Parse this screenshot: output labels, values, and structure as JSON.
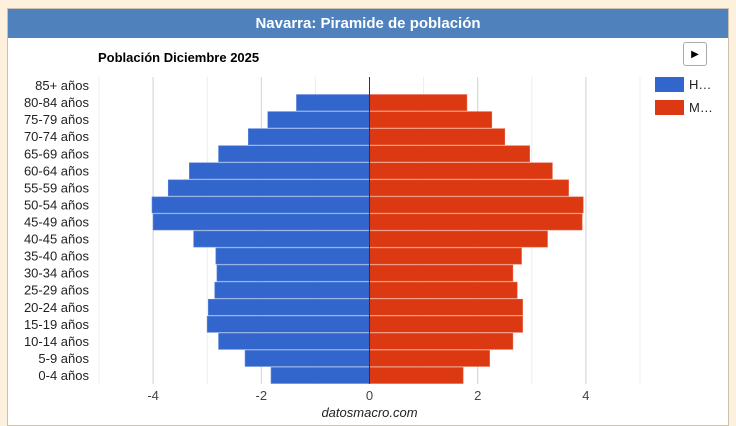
{
  "header": {
    "title": "Navarra: Piramide de población"
  },
  "controls": {
    "play_icon": "▶"
  },
  "footer": {
    "source": "datosmacro.com"
  },
  "colors": {
    "men": "#3366cc",
    "women": "#dc3912",
    "header": "#4f81bd"
  },
  "chart_data": {
    "type": "bar",
    "orientation": "horizontal-pyramid",
    "title": "Población Diciembre 2025",
    "categories": [
      "85+ años",
      "80-84 años",
      "75-79 años",
      "70-74 años",
      "65-69 años",
      "60-64 años",
      "55-59 años",
      "50-54 años",
      "45-49 años",
      "40-45 años",
      "35-40 años",
      "30-34 años",
      "25-29 años",
      "20-24 años",
      "15-19 años",
      "10-14 años",
      "5-9 años",
      "0-4 años"
    ],
    "series": [
      {
        "name": "H…",
        "values": [
          0,
          -1.35,
          -1.88,
          -2.24,
          -2.79,
          -3.33,
          -3.72,
          -4.02,
          -4.0,
          -3.25,
          -2.84,
          -2.82,
          -2.86,
          -2.98,
          -3.0,
          -2.79,
          -2.3,
          -1.82
        ]
      },
      {
        "name": "M…",
        "values": [
          0,
          1.8,
          2.26,
          2.5,
          2.96,
          3.38,
          3.68,
          3.95,
          3.93,
          3.29,
          2.81,
          2.65,
          2.73,
          2.83,
          2.83,
          2.65,
          2.22,
          1.73
        ]
      }
    ],
    "xlim": [
      -5,
      5
    ],
    "xticks": [
      -4,
      -2,
      0,
      2,
      4
    ],
    "xlabel": "datosmacro.com",
    "grid": true,
    "legend": "right"
  }
}
